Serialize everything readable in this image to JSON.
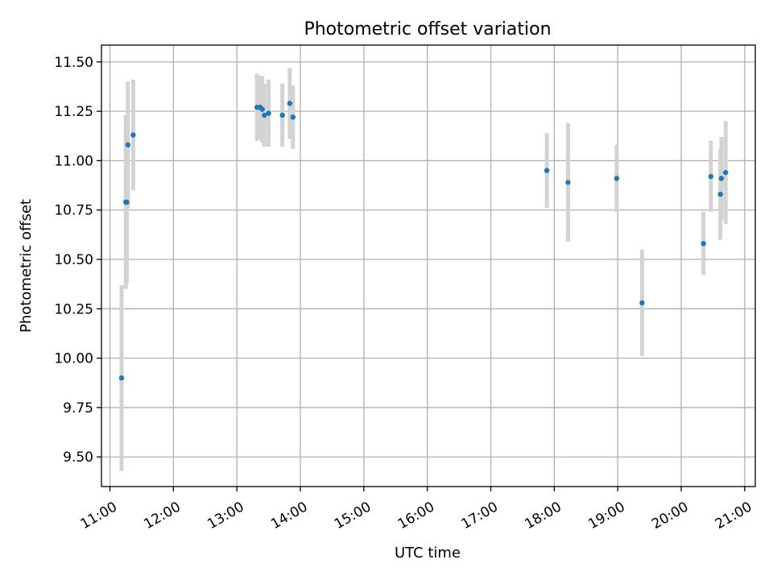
{
  "chart_data": {
    "type": "scatter",
    "title": "Photometric offset variation",
    "xlabel": "UTC time",
    "ylabel": "Photometric offset",
    "grid": true,
    "legend": "none",
    "xlim": [
      "10:52",
      "21:10"
    ],
    "ylim": [
      9.35,
      11.585
    ],
    "x_ticks": [
      "11:00",
      "12:00",
      "13:00",
      "14:00",
      "15:00",
      "16:00",
      "17:00",
      "18:00",
      "19:00",
      "20:00",
      "21:00"
    ],
    "y_ticks": [
      "9.50",
      "9.75",
      "10.00",
      "10.25",
      "10.50",
      "10.75",
      "11.00",
      "11.25",
      "11.50"
    ],
    "marker_color": "#1f77b4",
    "errorbar_color": "#d3d3d3",
    "points": [
      {
        "x": "11:11",
        "y": 9.9,
        "err": 0.47
      },
      {
        "x": "11:15",
        "y": 10.79,
        "err": 0.44
      },
      {
        "x": "11:16",
        "y": 10.79,
        "err": 0.41
      },
      {
        "x": "11:17",
        "y": 11.08,
        "err": 0.32
      },
      {
        "x": "11:22",
        "y": 11.13,
        "err": 0.28
      },
      {
        "x": "13:19",
        "y": 11.27,
        "err": 0.17
      },
      {
        "x": "13:22",
        "y": 11.27,
        "err": 0.16
      },
      {
        "x": "13:24",
        "y": 11.26,
        "err": 0.17
      },
      {
        "x": "13:26",
        "y": 11.23,
        "err": 0.16
      },
      {
        "x": "13:30",
        "y": 11.24,
        "err": 0.17
      },
      {
        "x": "13:43",
        "y": 11.23,
        "err": 0.16
      },
      {
        "x": "13:50",
        "y": 11.29,
        "err": 0.18
      },
      {
        "x": "13:53",
        "y": 11.22,
        "err": 0.16
      },
      {
        "x": "17:53",
        "y": 10.95,
        "err": 0.19
      },
      {
        "x": "18:13",
        "y": 10.89,
        "err": 0.3
      },
      {
        "x": "18:59",
        "y": 10.91,
        "err": 0.17
      },
      {
        "x": "19:23",
        "y": 10.28,
        "err": 0.27
      },
      {
        "x": "20:21",
        "y": 10.58,
        "err": 0.16
      },
      {
        "x": "20:28",
        "y": 10.92,
        "err": 0.18
      },
      {
        "x": "20:37",
        "y": 10.83,
        "err": 0.23
      },
      {
        "x": "20:38",
        "y": 10.91,
        "err": 0.21
      },
      {
        "x": "20:42",
        "y": 10.94,
        "err": 0.26
      }
    ]
  }
}
